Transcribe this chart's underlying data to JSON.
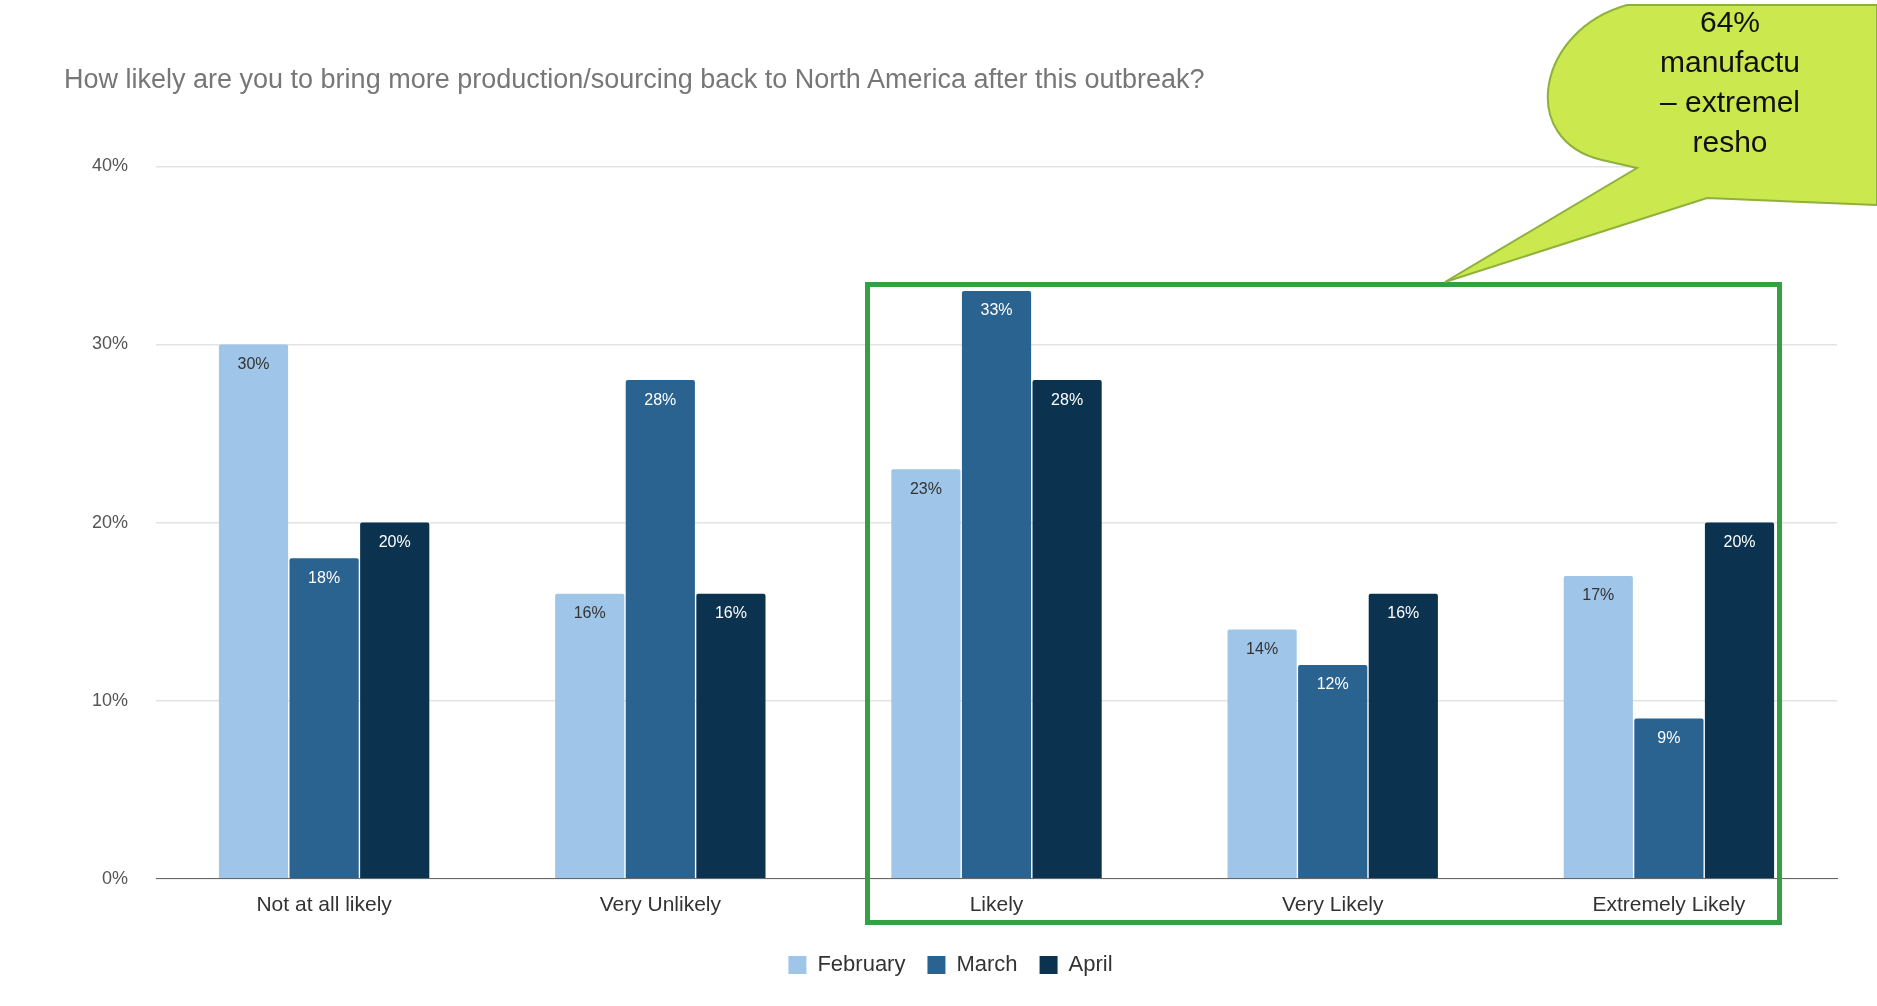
{
  "chart_data": {
    "type": "bar",
    "title": "How likely are you to bring more production/sourcing back to North America after this outbreak?",
    "categories": [
      "Not at all likely",
      "Very Unlikely",
      "Likely",
      "Very Likely",
      "Extremely Likely"
    ],
    "series": [
      {
        "name": "February",
        "color": "#9fc5e8",
        "values": [
          30,
          16,
          23,
          14,
          17
        ],
        "value_labels": [
          "30%",
          "16%",
          "23%",
          "14%",
          "17%"
        ]
      },
      {
        "name": "March",
        "color": "#2b6390",
        "values": [
          18,
          28,
          33,
          12,
          9
        ],
        "value_labels": [
          "18%",
          "28%",
          "33%",
          "12%",
          "9%"
        ]
      },
      {
        "name": "April",
        "color": "#0b3350",
        "values": [
          20,
          16,
          28,
          16,
          20
        ],
        "value_labels": [
          "20%",
          "16%",
          "28%",
          "16%",
          "20%"
        ]
      }
    ],
    "ylim": [
      0,
      40
    ],
    "yticks": [
      {
        "value": 0,
        "label": "0%"
      },
      {
        "value": 10,
        "label": "10%"
      },
      {
        "value": 20,
        "label": "20%"
      },
      {
        "value": 30,
        "label": "30%"
      },
      {
        "value": 40,
        "label": "40%"
      }
    ],
    "grid": "y",
    "legend": "bottom",
    "annotations": [
      "64%\nmanufactu\n– extremel\nresho"
    ]
  }
}
